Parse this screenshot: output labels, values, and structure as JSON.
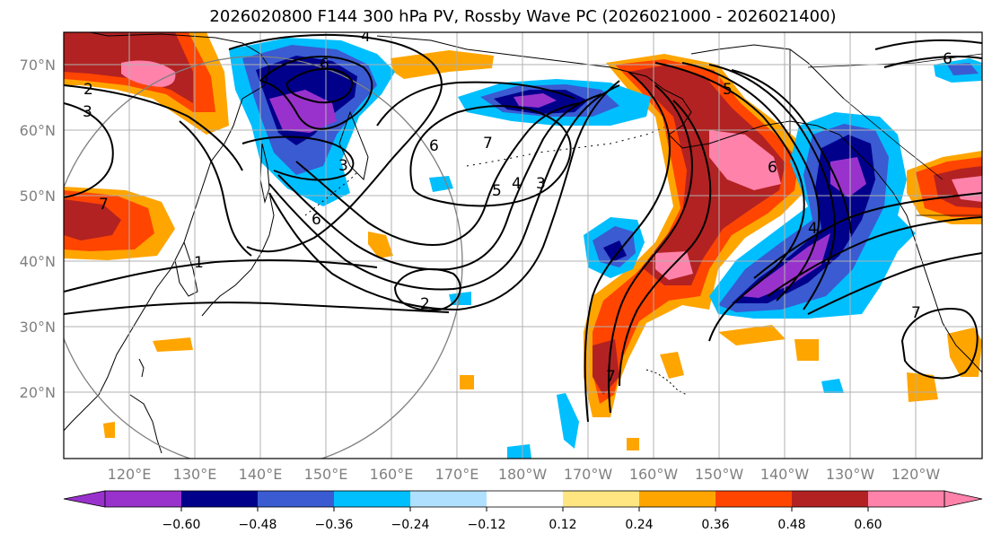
{
  "title": "2026020800 F144 300 hPa PV, Rossby Wave PC (2026021000 - 2026021400)",
  "map": {
    "lat_labels": [
      "70°N",
      "60°N",
      "50°N",
      "40°N",
      "30°N",
      "20°N"
    ],
    "lon_labels": [
      "120°E",
      "130°E",
      "140°E",
      "150°E",
      "160°E",
      "170°E",
      "180°W",
      "170°W",
      "160°W",
      "150°W",
      "140°W",
      "130°W",
      "120°W"
    ],
    "contour_labels": [
      "2",
      "3",
      "4",
      "6",
      "3",
      "6",
      "6",
      "5",
      "4",
      "3",
      "7",
      "1",
      "2",
      "7",
      "5",
      "6",
      "4",
      "7",
      "6",
      "7"
    ]
  },
  "colorbar": {
    "ticks": [
      "−0.60",
      "−0.48",
      "−0.36",
      "−0.24",
      "−0.12",
      "0.12",
      "0.24",
      "0.36",
      "0.48",
      "0.60"
    ],
    "colors": [
      "#9932CC",
      "#00008B",
      "#3A5BD1",
      "#00BFFF",
      "#B0E0FF",
      "#FFFFFF",
      "#FFE680",
      "#FFA500",
      "#FF4500",
      "#B22222",
      "#FF82AB",
      "#FF82AB"
    ]
  }
}
